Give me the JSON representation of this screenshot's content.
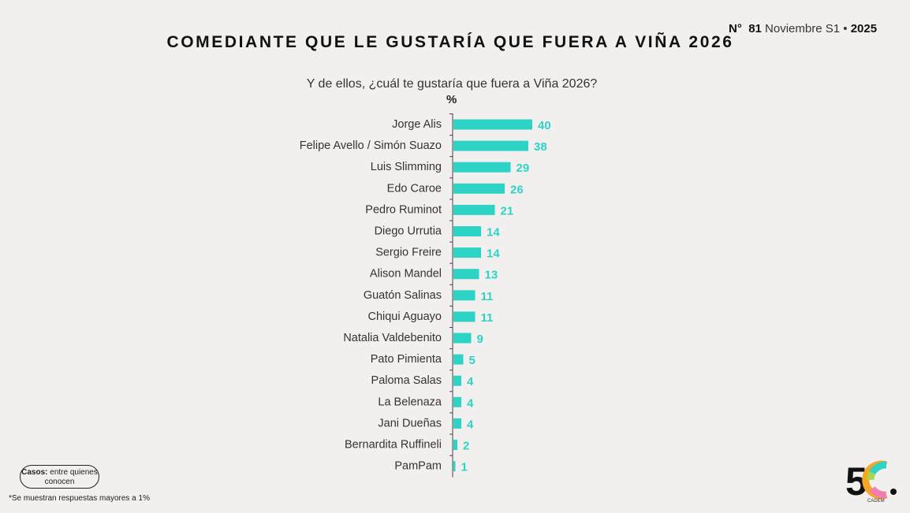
{
  "header": {
    "issue_prefix": "N°",
    "issue_number": "81",
    "period": "Noviembre S1",
    "bullet": "•",
    "year": "2025"
  },
  "footer": {
    "casos_label": "Casos:",
    "casos_text": "entre quienes conocen",
    "note": "*Se muestran respuestas mayores a 1%",
    "logo_text": "5C",
    "logo_sub": "CADEM"
  },
  "chart_data": {
    "type": "bar",
    "orientation": "horizontal",
    "title": "COMEDIANTE QUE LE GUSTARÍA QUE FUERA A VIÑA 2026",
    "subtitle": "Y de ellos, ¿cuál te gustaría que fuera a Viña 2026?",
    "unit": "%",
    "categories": [
      "Jorge Alis",
      "Felipe Avello / Simón Suazo",
      "Luis Slimming",
      "Edo Caroe",
      "Pedro Ruminot",
      "Diego Urrutia",
      "Sergio Freire",
      "Alison Mandel",
      "Guatón Salinas",
      "Chiqui Aguayo",
      "Natalia Valdebenito",
      "Pato Pimienta",
      "Paloma Salas",
      "La Belenaza",
      "Jani Dueñas",
      "Bernardita Ruffineli",
      "PamPam"
    ],
    "values": [
      40,
      38,
      29,
      26,
      21,
      14,
      14,
      13,
      11,
      11,
      9,
      5,
      4,
      4,
      4,
      2,
      1
    ],
    "color": "#2dd4c6"
  }
}
